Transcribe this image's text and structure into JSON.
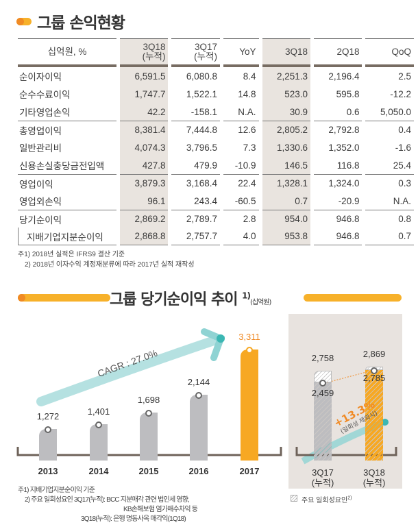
{
  "section1": {
    "title": "그룹 손익현황"
  },
  "table": {
    "headers": [
      "십억원, %",
      "3Q18\n(누적)",
      "3Q17\n(누적)",
      "YoY",
      "3Q18",
      "2Q18",
      "QoQ"
    ],
    "rows": [
      [
        "순이자이익",
        "6,591.5",
        "6,080.8",
        "8.4",
        "2,251.3",
        "2,196.4",
        "2.5"
      ],
      [
        "순수수료이익",
        "1,747.7",
        "1,522.1",
        "14.8",
        "523.0",
        "595.8",
        "-12.2"
      ],
      [
        "기타영업손익",
        "42.2",
        "-158.1",
        "N.A.",
        "30.9",
        "0.6",
        "5,050.0"
      ],
      [
        "총영업이익",
        "8,381.4",
        "7,444.8",
        "12.6",
        "2,805.2",
        "2,792.8",
        "0.4"
      ],
      [
        "일반관리비",
        "4,074.3",
        "3,796.5",
        "7.3",
        "1,330.6",
        "1,352.0",
        "-1.6"
      ],
      [
        "신용손실충당금전입액",
        "427.8",
        "479.9",
        "-10.9",
        "146.5",
        "116.8",
        "25.4"
      ],
      [
        "영업이익",
        "3,879.3",
        "3,168.4",
        "22.4",
        "1,328.1",
        "1,324.0",
        "0.3"
      ],
      [
        "영업외손익",
        "96.1",
        "243.4",
        "-60.5",
        "0.7",
        "-20.9",
        "N.A."
      ],
      [
        "당기순이익",
        "2,869.2",
        "2,789.7",
        "2.8",
        "954.0",
        "946.8",
        "0.8"
      ],
      [
        "지배기업지분순이익",
        "2,868.8",
        "2,757.7",
        "4.0",
        "953.8",
        "946.8",
        "0.7"
      ]
    ],
    "notes": [
      "주1) 2018년 실적은 IFRS9 결산 기준",
      "2) 2018년 이자수익 계정재분류에 따라 2017년 실적 재작성"
    ]
  },
  "section2": {
    "title": "그룹 당기순이익 추이",
    "sup": "1)",
    "unit": "(십억원)"
  },
  "chart_data": [
    {
      "type": "bar",
      "categories": [
        "2013",
        "2014",
        "2015",
        "2016",
        "2017"
      ],
      "values": [
        1272,
        1401,
        1698,
        2144,
        3311
      ],
      "labels": [
        "1,272",
        "1,401",
        "1,698",
        "2,144",
        "3,311"
      ],
      "annotation": "CAGR : 27.0%",
      "colors": {
        "past": "#bdbdc0",
        "latest": "#f7a823",
        "arrow": "#7ecfd0"
      }
    },
    {
      "type": "bar",
      "categories": [
        "3Q17\n(누적)",
        "3Q18\n(누적)"
      ],
      "totals": [
        2758,
        2869
      ],
      "excluding_one_off": [
        2459,
        2785
      ],
      "total_labels": [
        "2,758",
        "2,869"
      ],
      "excl_labels": [
        "2,459",
        "2,785"
      ],
      "annotation": "+13.3%",
      "annotation_sub": "(일회성 제외시)",
      "legend": "주요 일회성요인",
      "legend_sup": "2)"
    }
  ],
  "chart_notes": [
    "주1) 지배기업지분순이익 기준",
    "2) 주요 일회성요인 3Q17(누적): BCC 지분매각 관련 법인세 영향,",
    "KB손해보험 염가매수차익 등",
    "3Q18(누적): 은행 명동사옥 매각익(1Q18)"
  ]
}
